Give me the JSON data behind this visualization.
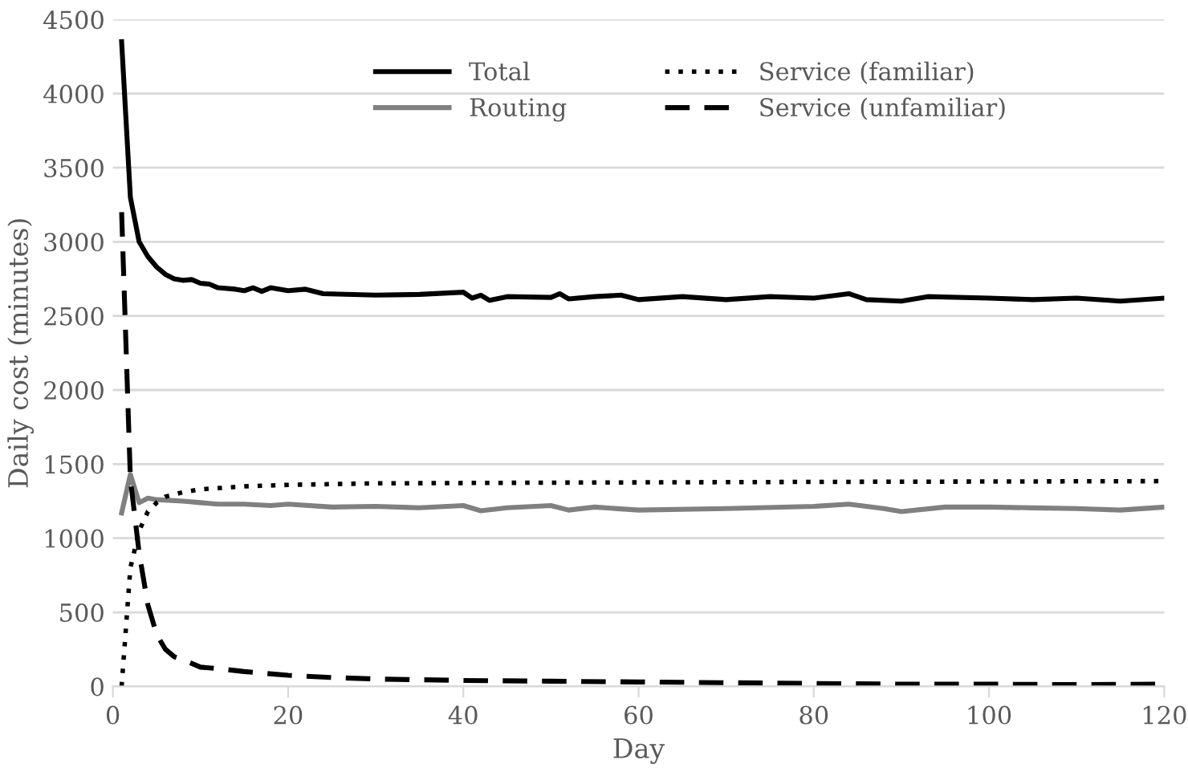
{
  "chart_data": {
    "type": "line",
    "xlabel": "Day",
    "ylabel": "Daily cost (minutes)",
    "xlim": [
      0,
      120
    ],
    "xticks": [
      0,
      20,
      40,
      60,
      80,
      100,
      120
    ],
    "ylim": [
      0,
      4500
    ],
    "yticks": [
      0,
      500,
      1000,
      1500,
      2000,
      2500,
      3000,
      3500,
      4000,
      4500
    ],
    "grid": "y",
    "legend": "top",
    "marker": "none",
    "series": [
      {
        "name": "Total",
        "color": "#000000",
        "line_style": "solid",
        "x": [
          1,
          2,
          3,
          4,
          5,
          6,
          7,
          8,
          9,
          10,
          11,
          12,
          14,
          15,
          16,
          17,
          18,
          20,
          22,
          24,
          30,
          35,
          40,
          41,
          42,
          43,
          45,
          50,
          51,
          52,
          55,
          58,
          60,
          65,
          70,
          75,
          80,
          84,
          86,
          90,
          93,
          100,
          105,
          110,
          115,
          120
        ],
        "values": [
          4350,
          3300,
          3000,
          2900,
          2830,
          2780,
          2750,
          2740,
          2745,
          2720,
          2715,
          2690,
          2680,
          2670,
          2690,
          2665,
          2690,
          2670,
          2680,
          2650,
          2640,
          2645,
          2660,
          2620,
          2640,
          2605,
          2630,
          2625,
          2650,
          2615,
          2630,
          2640,
          2610,
          2630,
          2610,
          2630,
          2620,
          2650,
          2610,
          2600,
          2630,
          2620,
          2610,
          2620,
          2600,
          2620
        ]
      },
      {
        "name": "Routing",
        "color": "#808080",
        "line_style": "solid",
        "x": [
          1,
          2,
          3,
          4,
          5,
          8,
          10,
          12,
          15,
          18,
          20,
          25,
          30,
          35,
          40,
          42,
          45,
          50,
          52,
          55,
          60,
          70,
          80,
          84,
          88,
          90,
          95,
          100,
          105,
          110,
          115,
          120
        ],
        "values": [
          1170,
          1430,
          1240,
          1270,
          1260,
          1250,
          1240,
          1230,
          1230,
          1220,
          1230,
          1210,
          1215,
          1205,
          1220,
          1185,
          1205,
          1220,
          1190,
          1210,
          1190,
          1200,
          1215,
          1230,
          1200,
          1180,
          1210,
          1210,
          1205,
          1200,
          1190,
          1210
        ]
      },
      {
        "name": "Service (familiar)",
        "color": "#000000",
        "line_style": "dotted",
        "x": [
          1,
          2,
          3,
          4,
          5,
          6,
          8,
          10,
          15,
          20,
          30,
          50,
          80,
          120
        ],
        "values": [
          0,
          800,
          1050,
          1180,
          1240,
          1280,
          1310,
          1330,
          1350,
          1360,
          1370,
          1375,
          1380,
          1385
        ]
      },
      {
        "name": "Service (unfamiliar)",
        "color": "#000000",
        "line_style": "dashed",
        "x": [
          1,
          2,
          3,
          4,
          5,
          6,
          7,
          8,
          10,
          12,
          15,
          20,
          25,
          30,
          40,
          50,
          60,
          70,
          80,
          90,
          100,
          110,
          120
        ],
        "values": [
          3200,
          1400,
          900,
          550,
          350,
          250,
          200,
          180,
          130,
          120,
          100,
          75,
          60,
          50,
          40,
          35,
          30,
          25,
          20,
          15,
          15,
          12,
          15
        ]
      }
    ]
  }
}
